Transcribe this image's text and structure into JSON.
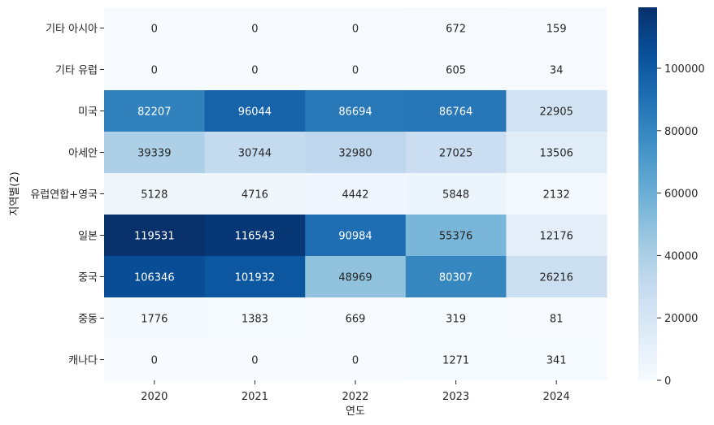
{
  "chart_data": {
    "type": "heatmap",
    "xlabel": "연도",
    "ylabel": "지역별(2)",
    "x_categories": [
      "2020",
      "2021",
      "2022",
      "2023",
      "2024"
    ],
    "y_categories": [
      "기타 아시아",
      "기타 유럽",
      "미국",
      "아세안",
      "유럽연합+영국",
      "일본",
      "중국",
      "중동",
      "캐나다"
    ],
    "values": [
      [
        0,
        0,
        0,
        672,
        159
      ],
      [
        0,
        0,
        0,
        605,
        34
      ],
      [
        82207,
        96044,
        86694,
        86764,
        22905
      ],
      [
        39339,
        30744,
        32980,
        27025,
        13506
      ],
      [
        5128,
        4716,
        4442,
        5848,
        2132
      ],
      [
        119531,
        116543,
        90984,
        55376,
        12176
      ],
      [
        106346,
        101932,
        48969,
        80307,
        26216
      ],
      [
        1776,
        1383,
        669,
        319,
        81
      ],
      [
        0,
        0,
        0,
        1271,
        341
      ]
    ],
    "colorbar": {
      "min": 0,
      "max": 119531,
      "ticks": [
        0,
        20000,
        40000,
        60000,
        80000,
        100000
      ],
      "colormap": "Blues"
    }
  }
}
